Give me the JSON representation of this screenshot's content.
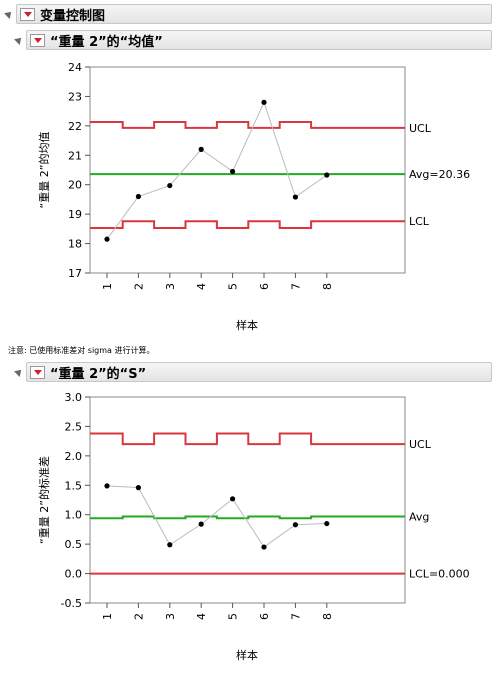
{
  "headers": {
    "main": "变量控制图",
    "mean_section": "“重量 2”的“均值”",
    "s_section": "“重量 2”的“S”"
  },
  "note": "注意: 已使用标准差对 sigma 进行计算。",
  "colors": {
    "limit_line": "#d9363e",
    "center_line": "#22aa22",
    "points": "#000000",
    "connector": "#bbbbbb"
  },
  "chart_data": [
    {
      "type": "line",
      "ylabel": "“重量 2”的均值",
      "xlabel": "样本",
      "ylim": [
        17,
        24
      ],
      "yticks": [
        "17",
        "18",
        "19",
        "20",
        "21",
        "22",
        "23",
        "24"
      ],
      "x": [
        "1",
        "2",
        "3",
        "4",
        "5",
        "6",
        "7",
        "8"
      ],
      "values": [
        18.15,
        19.6,
        19.97,
        21.2,
        20.45,
        22.8,
        19.58,
        20.33
      ],
      "ucl": [
        22.13,
        21.93,
        22.13,
        21.93,
        22.13,
        21.93,
        22.13,
        21.93
      ],
      "lcl": [
        18.53,
        18.76,
        18.53,
        18.76,
        18.53,
        18.76,
        18.53,
        18.76
      ],
      "center": 20.36,
      "labels": {
        "ucl": "UCL",
        "center": "Avg=20.36",
        "lcl": "LCL"
      }
    },
    {
      "type": "line",
      "ylabel": "“重量 2”的标准差",
      "xlabel": "样本",
      "ylim": [
        -0.5,
        3.0
      ],
      "yticks": [
        "-0.5",
        "0.0",
        "0.5",
        "1.0",
        "1.5",
        "2.0",
        "2.5",
        "3.0"
      ],
      "x": [
        "1",
        "2",
        "3",
        "4",
        "5",
        "6",
        "7",
        "8"
      ],
      "values": [
        1.49,
        1.46,
        0.49,
        0.84,
        1.27,
        0.45,
        0.83,
        0.85
      ],
      "ucl": [
        2.38,
        2.2,
        2.38,
        2.2,
        2.38,
        2.2,
        2.38,
        2.2
      ],
      "lcl": [
        0,
        0,
        0,
        0,
        0,
        0,
        0,
        0
      ],
      "center_steps": [
        0.94,
        0.97,
        0.94,
        0.97,
        0.94,
        0.97,
        0.94,
        0.97
      ],
      "labels": {
        "ucl": "UCL",
        "center": "Avg",
        "lcl": "LCL=0.000"
      }
    }
  ]
}
